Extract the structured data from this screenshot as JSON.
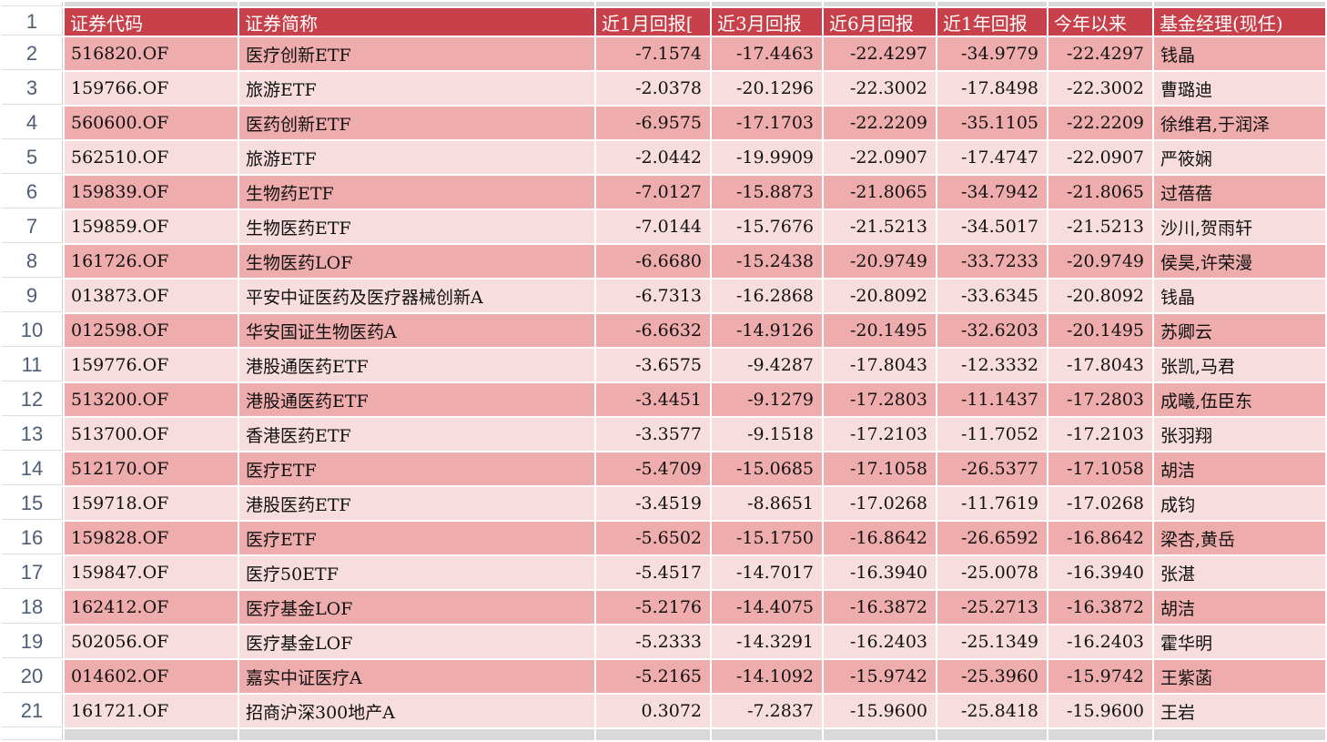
{
  "colors": {
    "header_bg": "#C7404A",
    "row_dark": "#EEACAC",
    "row_light": "#F7DDDD",
    "strip_bg": "#D9D9D9",
    "row_number_color": "#4F5E77"
  },
  "table": {
    "header_row_number": "1",
    "columns": [
      {
        "key": "code",
        "label": "证券代码",
        "align": "left"
      },
      {
        "key": "name",
        "label": "证券简称",
        "align": "left"
      },
      {
        "key": "r1m",
        "label": "近1月回报[",
        "align": "right"
      },
      {
        "key": "r3m",
        "label": "近3月回报",
        "align": "right"
      },
      {
        "key": "r6m",
        "label": "近6月回报",
        "align": "right"
      },
      {
        "key": "r1y",
        "label": "近1年回报",
        "align": "right"
      },
      {
        "key": "ytd",
        "label": "今年以来",
        "align": "right"
      },
      {
        "key": "mgr",
        "label": "基金经理(现任)",
        "align": "left"
      }
    ],
    "rows": [
      {
        "n": "2",
        "code": "516820.OF",
        "name": "医疗创新ETF",
        "r1m": "-7.1574",
        "r3m": "-17.4463",
        "r6m": "-22.4297",
        "r1y": "-34.9779",
        "ytd": "-22.4297",
        "mgr": "钱晶"
      },
      {
        "n": "3",
        "code": "159766.OF",
        "name": "旅游ETF",
        "r1m": "-2.0378",
        "r3m": "-20.1296",
        "r6m": "-22.3002",
        "r1y": "-17.8498",
        "ytd": "-22.3002",
        "mgr": "曹璐迪"
      },
      {
        "n": "4",
        "code": "560600.OF",
        "name": "医药创新ETF",
        "r1m": "-6.9575",
        "r3m": "-17.1703",
        "r6m": "-22.2209",
        "r1y": "-35.1105",
        "ytd": "-22.2209",
        "mgr": "徐维君,于润泽"
      },
      {
        "n": "5",
        "code": "562510.OF",
        "name": "旅游ETF",
        "r1m": "-2.0442",
        "r3m": "-19.9909",
        "r6m": "-22.0907",
        "r1y": "-17.4747",
        "ytd": "-22.0907",
        "mgr": "严筱娴"
      },
      {
        "n": "6",
        "code": "159839.OF",
        "name": "生物药ETF",
        "r1m": "-7.0127",
        "r3m": "-15.8873",
        "r6m": "-21.8065",
        "r1y": "-34.7942",
        "ytd": "-21.8065",
        "mgr": "过蓓蓓"
      },
      {
        "n": "7",
        "code": "159859.OF",
        "name": "生物医药ETF",
        "r1m": "-7.0144",
        "r3m": "-15.7676",
        "r6m": "-21.5213",
        "r1y": "-34.5017",
        "ytd": "-21.5213",
        "mgr": "沙川,贺雨轩"
      },
      {
        "n": "8",
        "code": "161726.OF",
        "name": "生物医药LOF",
        "r1m": "-6.6680",
        "r3m": "-15.2438",
        "r6m": "-20.9749",
        "r1y": "-33.7233",
        "ytd": "-20.9749",
        "mgr": "侯昊,许荣漫"
      },
      {
        "n": "9",
        "code": "013873.OF",
        "name": "平安中证医药及医疗器械创新A",
        "r1m": "-6.7313",
        "r3m": "-16.2868",
        "r6m": "-20.8092",
        "r1y": "-33.6345",
        "ytd": "-20.8092",
        "mgr": "钱晶"
      },
      {
        "n": "10",
        "code": "012598.OF",
        "name": "华安国证生物医药A",
        "r1m": "-6.6632",
        "r3m": "-14.9126",
        "r6m": "-20.1495",
        "r1y": "-32.6203",
        "ytd": "-20.1495",
        "mgr": "苏卿云"
      },
      {
        "n": "11",
        "code": "159776.OF",
        "name": "港股通医药ETF",
        "r1m": "-3.6575",
        "r3m": "-9.4287",
        "r6m": "-17.8043",
        "r1y": "-12.3332",
        "ytd": "-17.8043",
        "mgr": "张凯,马君"
      },
      {
        "n": "12",
        "code": "513200.OF",
        "name": "港股通医药ETF",
        "r1m": "-3.4451",
        "r3m": "-9.1279",
        "r6m": "-17.2803",
        "r1y": "-11.1437",
        "ytd": "-17.2803",
        "mgr": "成曦,伍臣东"
      },
      {
        "n": "13",
        "code": "513700.OF",
        "name": "香港医药ETF",
        "r1m": "-3.3577",
        "r3m": "-9.1518",
        "r6m": "-17.2103",
        "r1y": "-11.7052",
        "ytd": "-17.2103",
        "mgr": "张羽翔"
      },
      {
        "n": "14",
        "code": "512170.OF",
        "name": "医疗ETF",
        "r1m": "-5.4709",
        "r3m": "-15.0685",
        "r6m": "-17.1058",
        "r1y": "-26.5377",
        "ytd": "-17.1058",
        "mgr": "胡洁"
      },
      {
        "n": "15",
        "code": "159718.OF",
        "name": "港股医药ETF",
        "r1m": "-3.4519",
        "r3m": "-8.8651",
        "r6m": "-17.0268",
        "r1y": "-11.7619",
        "ytd": "-17.0268",
        "mgr": "成钧"
      },
      {
        "n": "16",
        "code": "159828.OF",
        "name": "医疗ETF",
        "r1m": "-5.6502",
        "r3m": "-15.1750",
        "r6m": "-16.8642",
        "r1y": "-26.6592",
        "ytd": "-16.8642",
        "mgr": "梁杏,黄岳"
      },
      {
        "n": "17",
        "code": "159847.OF",
        "name": "医疗50ETF",
        "r1m": "-5.4517",
        "r3m": "-14.7017",
        "r6m": "-16.3940",
        "r1y": "-25.0078",
        "ytd": "-16.3940",
        "mgr": "张湛"
      },
      {
        "n": "18",
        "code": "162412.OF",
        "name": "医疗基金LOF",
        "r1m": "-5.2176",
        "r3m": "-14.4075",
        "r6m": "-16.3872",
        "r1y": "-25.2713",
        "ytd": "-16.3872",
        "mgr": "胡洁"
      },
      {
        "n": "19",
        "code": "502056.OF",
        "name": "医疗基金LOF",
        "r1m": "-5.2333",
        "r3m": "-14.3291",
        "r6m": "-16.2403",
        "r1y": "-25.1349",
        "ytd": "-16.2403",
        "mgr": "霍华明"
      },
      {
        "n": "20",
        "code": "014602.OF",
        "name": "嘉实中证医疗A",
        "r1m": "-5.2165",
        "r3m": "-14.1092",
        "r6m": "-15.9742",
        "r1y": "-25.3960",
        "ytd": "-15.9742",
        "mgr": "王紫菡"
      },
      {
        "n": "21",
        "code": "161721.OF",
        "name": "招商沪深300地产A",
        "r1m": "0.3072",
        "r3m": "-7.2837",
        "r6m": "-15.9600",
        "r1y": "-25.8418",
        "ytd": "-15.9600",
        "mgr": "王岩"
      }
    ]
  }
}
